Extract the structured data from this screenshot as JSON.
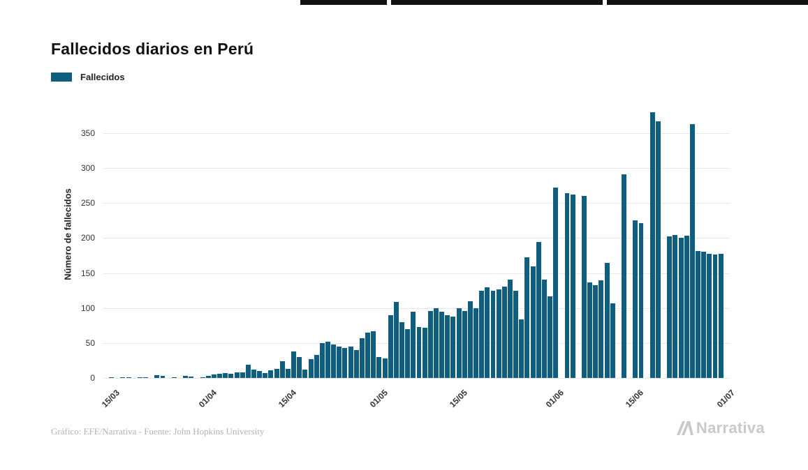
{
  "page": {
    "title": "Fallecidos diarios en Perú",
    "footer_credit": "Gráfico: EFE/Narrativa - Fuente: John Hopkins University",
    "brand": "Narrativa"
  },
  "legend": {
    "label": "Fallecidos",
    "color": "#0f5e80"
  },
  "chart_data": {
    "type": "bar",
    "title": "Fallecidos diarios en Perú",
    "series_name": "Fallecidos",
    "xlabel": "",
    "ylabel": "Número de fallecidos",
    "bar_color": "#0f5e80",
    "grid": "horizontal",
    "legend_position": "top-left",
    "ylim": [
      0,
      395
    ],
    "yticks": [
      0,
      50,
      100,
      150,
      200,
      250,
      300,
      350
    ],
    "x_tick_labels": [
      {
        "label": "15/03",
        "index": 2
      },
      {
        "label": "01/04",
        "index": 19
      },
      {
        "label": "15/04",
        "index": 33
      },
      {
        "label": "01/05",
        "index": 49
      },
      {
        "label": "15/05",
        "index": 63
      },
      {
        "label": "01/06",
        "index": 80
      },
      {
        "label": "15/06",
        "index": 94
      },
      {
        "label": "01/07",
        "index": 110
      }
    ],
    "dates": [
      "13/03",
      "14/03",
      "15/03",
      "16/03",
      "17/03",
      "18/03",
      "19/03",
      "20/03",
      "21/03",
      "22/03",
      "23/03",
      "24/03",
      "25/03",
      "26/03",
      "27/03",
      "28/03",
      "29/03",
      "30/03",
      "31/03",
      "01/04",
      "02/04",
      "03/04",
      "04/04",
      "05/04",
      "06/04",
      "07/04",
      "08/04",
      "09/04",
      "10/04",
      "11/04",
      "12/04",
      "13/04",
      "14/04",
      "15/04",
      "16/04",
      "17/04",
      "18/04",
      "19/04",
      "20/04",
      "21/04",
      "22/04",
      "23/04",
      "24/04",
      "25/04",
      "26/04",
      "27/04",
      "28/04",
      "29/04",
      "30/04",
      "01/05",
      "02/05",
      "03/05",
      "04/05",
      "05/05",
      "06/05",
      "07/05",
      "08/05",
      "09/05",
      "10/05",
      "11/05",
      "12/05",
      "13/05",
      "14/05",
      "15/05",
      "16/05",
      "17/05",
      "18/05",
      "19/05",
      "20/05",
      "21/05",
      "22/05",
      "23/05",
      "24/05",
      "25/05",
      "26/05",
      "27/05",
      "28/05",
      "29/05",
      "30/05",
      "31/05",
      "01/06",
      "02/06",
      "03/06",
      "04/06",
      "05/06",
      "06/06",
      "07/06",
      "08/06",
      "09/06",
      "10/06",
      "11/06",
      "12/06",
      "13/06",
      "14/06",
      "15/06",
      "16/06",
      "17/06",
      "18/06",
      "19/06",
      "20/06",
      "21/06",
      "22/06",
      "23/06",
      "24/06",
      "25/06",
      "26/06",
      "27/06",
      "28/06",
      "29/06",
      "30/06"
    ],
    "values": [
      0,
      1,
      0,
      1,
      1,
      0,
      1,
      1,
      0,
      4,
      3,
      0,
      1,
      0,
      3,
      2,
      0,
      1,
      3,
      5,
      6,
      7,
      6,
      8,
      8,
      19,
      12,
      10,
      7,
      11,
      13,
      24,
      13,
      38,
      30,
      12,
      27,
      33,
      50,
      52,
      48,
      45,
      43,
      45,
      40,
      57,
      65,
      67,
      30,
      28,
      90,
      109,
      80,
      70,
      95,
      73,
      72,
      96,
      100,
      95,
      90,
      88,
      100,
      96,
      110,
      100,
      125,
      130,
      125,
      127,
      131,
      141,
      125,
      84,
      173,
      160,
      195,
      141,
      117,
      272,
      0,
      264,
      262,
      0,
      260,
      137,
      133,
      140,
      165,
      107,
      0,
      291,
      0,
      225,
      221,
      0,
      380,
      367,
      0,
      202,
      204,
      200,
      203,
      363,
      182,
      181,
      178,
      177,
      178,
      0
    ]
  }
}
